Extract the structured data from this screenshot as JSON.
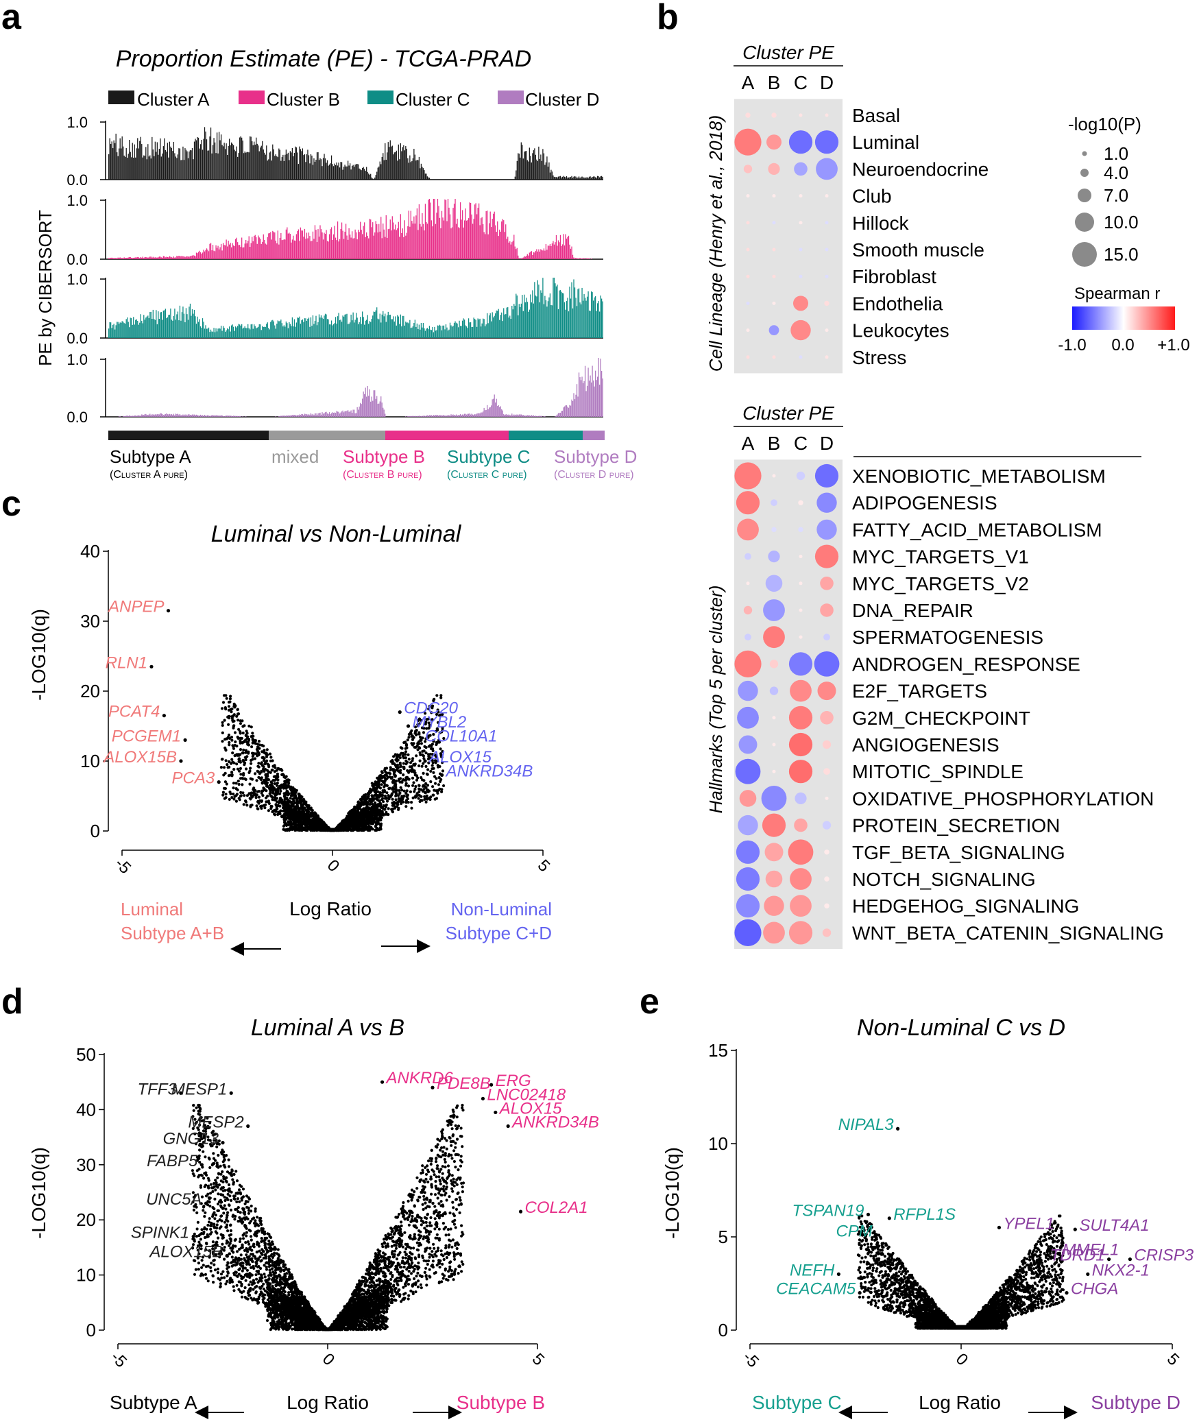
{
  "panel_letters": [
    "a",
    "b",
    "c",
    "d",
    "e"
  ],
  "colors": {
    "clusterA": "#1a1a1a",
    "clusterB": "#e8308a",
    "clusterC": "#0f8d86",
    "clusterD": "#b07cc0",
    "mixed": "#9a9a9a",
    "lumRed": "#f07a7a",
    "nonLumBlue": "#6464f0",
    "subtypeB": "#e8308a",
    "subtypeC": "#17a08f",
    "subtypeD": "#8a3fa0",
    "heat_bg": "#e3e3e3"
  },
  "panel_a": {
    "title": "Proportion Estimate (PE) - TCGA-PRAD",
    "ylabel": "PE by CIBERSORT",
    "legend": [
      "Cluster A",
      "Cluster B",
      "Cluster C",
      "Cluster D"
    ],
    "tick_labels": [
      "1.0",
      "0.0"
    ],
    "subtypes": [
      {
        "name": "Subtype A",
        "sub": "(Cluster A pure)",
        "color": "#000000"
      },
      {
        "name": "mixed",
        "sub": "",
        "color": "#9a9a9a"
      },
      {
        "name": "Subtype B",
        "sub": "(Cluster B pure)",
        "color": "#e8308a"
      },
      {
        "name": "Subtype C",
        "sub": "(Cluster C pure)",
        "color": "#0f8d86"
      },
      {
        "name": "Subtype D",
        "sub": "(Cluster D pure)",
        "color": "#b07cc0"
      }
    ]
  },
  "panel_b": {
    "header": "Cluster PE",
    "columns": [
      "A",
      "B",
      "C",
      "D"
    ],
    "lineage_label": "Cell Lineage (Henry et al., 2018)",
    "hallmarks_label": "Hallmarks (Top 5 per cluster)",
    "size_legend_title": "-log10(P)",
    "size_legend": [
      "1.0",
      "4.0",
      "7.0",
      "10.0",
      "15.0"
    ],
    "color_legend_title": "Spearman r",
    "color_legend_ticks": [
      "-1.0",
      "0.0",
      "+1.0"
    ]
  },
  "panel_c": {
    "title": "Luminal vs Non-Luminal",
    "ylabel": "-LOG10(q)",
    "xlabel": "Log Ratio",
    "left_label_1": "Luminal",
    "left_label_2": "Subtype A+B",
    "right_label_1": "Non-Luminal",
    "right_label_2": "Subtype C+D"
  },
  "panel_d": {
    "title": "Luminal A vs B",
    "ylabel": "-LOG10(q)",
    "xlabel": "Log Ratio",
    "left_label": "Subtype A",
    "right_label": "Subtype B"
  },
  "panel_e": {
    "title": "Non-Luminal C vs D",
    "ylabel": "-LOG10(q)",
    "xlabel": "Log Ratio",
    "left_label": "Subtype C",
    "right_label": "Subtype D"
  },
  "chart_data": [
    {
      "type": "bar",
      "id": "a",
      "title": "Proportion Estimate (PE) - TCGA-PRAD",
      "ylabel": "PE by CIBERSORT",
      "ylim": [
        0,
        1
      ],
      "series": [
        {
          "name": "Cluster A",
          "profile": [
            [
              0,
              0.62
            ],
            [
              0.12,
              0.55
            ],
            [
              0.17,
              0.45
            ],
            [
              0.18,
              0.72
            ],
            [
              0.3,
              0.55
            ],
            [
              0.4,
              0.42
            ],
            [
              0.46,
              0.3
            ],
            [
              0.52,
              0.2
            ],
            [
              0.535,
              0.0
            ],
            [
              0.56,
              0.55
            ],
            [
              0.62,
              0.4
            ],
            [
              0.65,
              0.0
            ],
            [
              0.82,
              0.0
            ],
            [
              0.83,
              0.55
            ],
            [
              0.88,
              0.4
            ],
            [
              0.9,
              0.05
            ],
            [
              1,
              0.05
            ]
          ]
        },
        {
          "name": "Cluster B",
          "profile": [
            [
              0,
              0.02
            ],
            [
              0.17,
              0.05
            ],
            [
              0.2,
              0.2
            ],
            [
              0.35,
              0.4
            ],
            [
              0.55,
              0.55
            ],
            [
              0.6,
              0.6
            ],
            [
              0.65,
              0.85
            ],
            [
              0.72,
              0.8
            ],
            [
              0.8,
              0.55
            ],
            [
              0.82,
              0.3
            ],
            [
              0.83,
              0.0
            ],
            [
              0.9,
              0.3
            ],
            [
              0.93,
              0.4
            ],
            [
              0.94,
              0.02
            ],
            [
              1,
              0.0
            ]
          ]
        },
        {
          "name": "Cluster C",
          "profile": [
            [
              0,
              0.2
            ],
            [
              0.08,
              0.35
            ],
            [
              0.17,
              0.45
            ],
            [
              0.2,
              0.15
            ],
            [
              0.3,
              0.2
            ],
            [
              0.4,
              0.3
            ],
            [
              0.5,
              0.35
            ],
            [
              0.55,
              0.4
            ],
            [
              0.62,
              0.25
            ],
            [
              0.65,
              0.15
            ],
            [
              0.78,
              0.35
            ],
            [
              0.83,
              0.6
            ],
            [
              0.9,
              0.9
            ],
            [
              0.92,
              0.55
            ],
            [
              0.94,
              0.8
            ],
            [
              0.97,
              0.65
            ],
            [
              1,
              0.55
            ]
          ]
        },
        {
          "name": "Cluster D",
          "profile": [
            [
              0,
              0.0
            ],
            [
              0.1,
              0.05
            ],
            [
              0.32,
              0.0
            ],
            [
              0.5,
              0.1
            ],
            [
              0.52,
              0.45
            ],
            [
              0.55,
              0.3
            ],
            [
              0.56,
              0.0
            ],
            [
              0.75,
              0.05
            ],
            [
              0.78,
              0.3
            ],
            [
              0.8,
              0.05
            ],
            [
              0.9,
              0.0
            ],
            [
              0.93,
              0.2
            ],
            [
              0.95,
              0.6
            ],
            [
              1,
              0.9
            ]
          ]
        }
      ]
    },
    {
      "type": "heatmap",
      "id": "b_lineage",
      "rows": [
        "Basal",
        "Luminal",
        "Neuroendocrine",
        "Club",
        "Hillock",
        "Smooth muscle",
        "Fibroblast",
        "Endothelia",
        "Leukocytes",
        "Stress"
      ],
      "columns": [
        "A",
        "B",
        "C",
        "D"
      ],
      "r": [
        [
          0.1,
          0.1,
          0.05,
          0.05
        ],
        [
          0.8,
          0.6,
          -0.9,
          -0.9
        ],
        [
          0.3,
          0.4,
          -0.5,
          -0.6
        ],
        [
          0,
          0,
          0,
          0
        ],
        [
          0.1,
          -0.1,
          0,
          -0.1
        ],
        [
          0.1,
          0.1,
          -0.1,
          -0.1
        ],
        [
          0.1,
          0.1,
          -0.1,
          -0.1
        ],
        [
          -0.1,
          0,
          0.7,
          0.1
        ],
        [
          0,
          -0.6,
          0.7,
          0
        ],
        [
          0.1,
          0.1,
          -0.1,
          0.05
        ]
      ],
      "neglog10p": [
        [
          2,
          2,
          1,
          1
        ],
        [
          15,
          8,
          13,
          13
        ],
        [
          4,
          6,
          7,
          12
        ],
        [
          1,
          1,
          1,
          1
        ],
        [
          1,
          1,
          1,
          1
        ],
        [
          1,
          1,
          1,
          1
        ],
        [
          1,
          1,
          1,
          1
        ],
        [
          1,
          1,
          8,
          2
        ],
        [
          1,
          5,
          11,
          1
        ],
        [
          1,
          1,
          1,
          1
        ]
      ]
    },
    {
      "type": "heatmap",
      "id": "b_hallmarks",
      "rows": [
        "XENOBIOTIC_METABOLISM",
        "ADIPOGENESIS",
        "FATTY_ACID_METABOLISM",
        "MYC_TARGETS_V1",
        "MYC_TARGETS_V2",
        "DNA_REPAIR",
        "SPERMATOGENESIS",
        "ANDROGEN_RESPONSE",
        "E2F_TARGETS",
        "G2M_CHECKPOINT",
        "ANGIOGENESIS",
        "MITOTIC_SPINDLE",
        "OXIDATIVE_PHOSPHORYLATION",
        "PROTEIN_SECRETION",
        "TGF_BETA_SIGNALING",
        "NOTCH_SIGNALING",
        "HEDGEHOG_SIGNALING",
        "WNT_BETA_CATENIN_SIGNALING"
      ],
      "columns": [
        "A",
        "B",
        "C",
        "D"
      ],
      "r": [
        [
          0.8,
          0,
          -0.2,
          -0.9
        ],
        [
          0.8,
          -0.2,
          0,
          -0.7
        ],
        [
          0.7,
          -0.1,
          -0.1,
          -0.6
        ],
        [
          -0.2,
          -0.4,
          0,
          0.8
        ],
        [
          0,
          -0.4,
          0,
          0.5
        ],
        [
          0.4,
          -0.6,
          0,
          0.5
        ],
        [
          -0.2,
          0.8,
          0,
          -0.2
        ],
        [
          0.8,
          0.2,
          -0.8,
          -0.9
        ],
        [
          -0.6,
          -0.3,
          0.7,
          0.7
        ],
        [
          -0.7,
          0,
          0.8,
          0.4
        ],
        [
          -0.6,
          0,
          0.9,
          0.2
        ],
        [
          -0.9,
          0,
          0.9,
          0.1
        ],
        [
          0.6,
          -0.7,
          -0.3,
          0
        ],
        [
          -0.5,
          0.8,
          0.5,
          -0.2
        ],
        [
          -0.8,
          0.5,
          0.8,
          0
        ],
        [
          -0.8,
          0.5,
          0.7,
          0
        ],
        [
          -0.7,
          0.6,
          0.6,
          0
        ],
        [
          -1.0,
          0.6,
          0.6,
          0.3
        ]
      ],
      "neglog10p": [
        [
          15,
          1,
          4,
          13
        ],
        [
          13,
          3,
          2,
          11
        ],
        [
          12,
          2,
          2,
          11
        ],
        [
          3,
          6,
          1,
          13
        ],
        [
          1,
          9,
          1,
          7
        ],
        [
          4,
          12,
          1,
          7
        ],
        [
          3,
          12,
          1,
          3
        ],
        [
          15,
          4,
          13,
          14
        ],
        [
          11,
          4,
          12,
          10
        ],
        [
          12,
          1,
          13,
          7
        ],
        [
          10,
          1,
          13,
          4
        ],
        [
          14,
          1,
          13,
          3
        ],
        [
          9,
          14,
          6,
          1
        ],
        [
          11,
          13,
          7,
          4
        ],
        [
          13,
          10,
          14,
          2
        ],
        [
          13,
          9,
          12,
          2
        ],
        [
          13,
          11,
          12,
          2
        ],
        [
          15,
          12,
          13,
          4
        ]
      ]
    },
    {
      "type": "scatter",
      "id": "c",
      "title": "Luminal vs Non-Luminal",
      "xlabel": "Log Ratio",
      "ylabel": "-LOG10(q)",
      "xlim": [
        -5,
        5
      ],
      "ylim": [
        0,
        40
      ],
      "yticks": [
        0,
        10,
        20,
        30,
        40
      ],
      "xticks": [
        -5,
        0,
        5
      ],
      "cloud": {
        "n": 2600,
        "xspread": 2.6,
        "ymax": 19
      },
      "labeled_points": [
        {
          "label": "ANPEP",
          "x": -3.9,
          "y": 31.5,
          "side": "left"
        },
        {
          "label": "RLN1",
          "x": -4.3,
          "y": 23.5,
          "side": "left"
        },
        {
          "label": "PCAT4",
          "x": -4.0,
          "y": 16.5,
          "side": "left"
        },
        {
          "label": "PCGEM1",
          "x": -3.5,
          "y": 13.0,
          "side": "left"
        },
        {
          "label": "ALOX15B",
          "x": -3.6,
          "y": 10.0,
          "side": "left"
        },
        {
          "label": "PCA3",
          "x": -2.7,
          "y": 7.0,
          "side": "left"
        },
        {
          "label": "CDC20",
          "x": 1.6,
          "y": 17.0,
          "side": "right"
        },
        {
          "label": "MYBL2",
          "x": 1.8,
          "y": 15.0,
          "side": "right"
        },
        {
          "label": "COL10A1",
          "x": 2.1,
          "y": 13.0,
          "side": "right"
        },
        {
          "label": "ALOX15",
          "x": 2.2,
          "y": 10.0,
          "side": "right"
        },
        {
          "label": "ANKRD34B",
          "x": 2.6,
          "y": 8.0,
          "side": "right"
        }
      ]
    },
    {
      "type": "scatter",
      "id": "d",
      "title": "Luminal A vs B",
      "xlabel": "Log Ratio",
      "ylabel": "-LOG10(q)",
      "xlim": [
        -5,
        5
      ],
      "ylim": [
        0,
        50
      ],
      "yticks": [
        0,
        10,
        20,
        30,
        40,
        50
      ],
      "xticks": [
        -5,
        0,
        5
      ],
      "cloud": {
        "n": 4200,
        "xspread": 3.2,
        "ymax": 40
      },
      "labeled_points": [
        {
          "label": "TFF3",
          "x": -3.5,
          "y": 43.0,
          "side": "left"
        },
        {
          "label": "MESP1",
          "x": -2.3,
          "y": 43.0,
          "side": "left"
        },
        {
          "label": "MESP2",
          "x": -1.9,
          "y": 37.0,
          "side": "left"
        },
        {
          "label": "GNG13",
          "x": -2.5,
          "y": 34.0,
          "side": "left"
        },
        {
          "label": "FABP5",
          "x": -3.0,
          "y": 30.0,
          "side": "left"
        },
        {
          "label": "UNC5A",
          "x": -2.9,
          "y": 23.0,
          "side": "left"
        },
        {
          "label": "SPINK1",
          "x": -3.2,
          "y": 17.0,
          "side": "left"
        },
        {
          "label": "ALOX15B",
          "x": -2.4,
          "y": 13.5,
          "side": "left"
        },
        {
          "label": "ANKRD6",
          "x": 1.3,
          "y": 45.0,
          "side": "right"
        },
        {
          "label": "PDE8B",
          "x": 2.5,
          "y": 44.0,
          "side": "right"
        },
        {
          "label": "ERG",
          "x": 3.9,
          "y": 44.5,
          "side": "right"
        },
        {
          "label": "LNC02418",
          "x": 3.7,
          "y": 42.0,
          "side": "right"
        },
        {
          "label": "ALOX15",
          "x": 4.0,
          "y": 39.5,
          "side": "right"
        },
        {
          "label": "ANKRD34B",
          "x": 4.3,
          "y": 37.0,
          "side": "right"
        },
        {
          "label": "COL2A1",
          "x": 4.6,
          "y": 21.5,
          "side": "right"
        }
      ]
    },
    {
      "type": "scatter",
      "id": "e",
      "title": "Non-Luminal C vs D",
      "xlabel": "Log Ratio",
      "ylabel": "-LOG10(q)",
      "xlim": [
        -5,
        5
      ],
      "ylim": [
        0,
        15
      ],
      "yticks": [
        0,
        5,
        10,
        15
      ],
      "xticks": [
        -5,
        0,
        5
      ],
      "cloud": {
        "n": 3200,
        "xspread": 2.4,
        "ymax": 6
      },
      "labeled_points": [
        {
          "label": "NIPAL3",
          "x": -1.5,
          "y": 10.8,
          "side": "left"
        },
        {
          "label": "TSPAN19",
          "x": -2.2,
          "y": 6.2,
          "side": "left"
        },
        {
          "label": "RFPL1S",
          "x": -1.7,
          "y": 6.0,
          "side": "right"
        },
        {
          "label": "CPM",
          "x": -2.0,
          "y": 5.1,
          "side": "left"
        },
        {
          "label": "NEFH",
          "x": -2.9,
          "y": 3.0,
          "side": "left"
        },
        {
          "label": "CEACAM5",
          "x": -2.4,
          "y": 2.0,
          "side": "left"
        },
        {
          "label": "YPEL1",
          "x": 0.9,
          "y": 5.5,
          "side": "right"
        },
        {
          "label": "SULT4A1",
          "x": 2.7,
          "y": 5.4,
          "side": "right"
        },
        {
          "label": "MMEL1",
          "x": 2.3,
          "y": 4.1,
          "side": "right"
        },
        {
          "label": "TDRD1",
          "x": 3.5,
          "y": 3.8,
          "side": "left"
        },
        {
          "label": "CRISP3",
          "x": 4.0,
          "y": 3.8,
          "side": "right"
        },
        {
          "label": "NKX2-1",
          "x": 3.0,
          "y": 3.0,
          "side": "right"
        },
        {
          "label": "CHGA",
          "x": 2.5,
          "y": 2.0,
          "side": "right"
        }
      ]
    }
  ]
}
